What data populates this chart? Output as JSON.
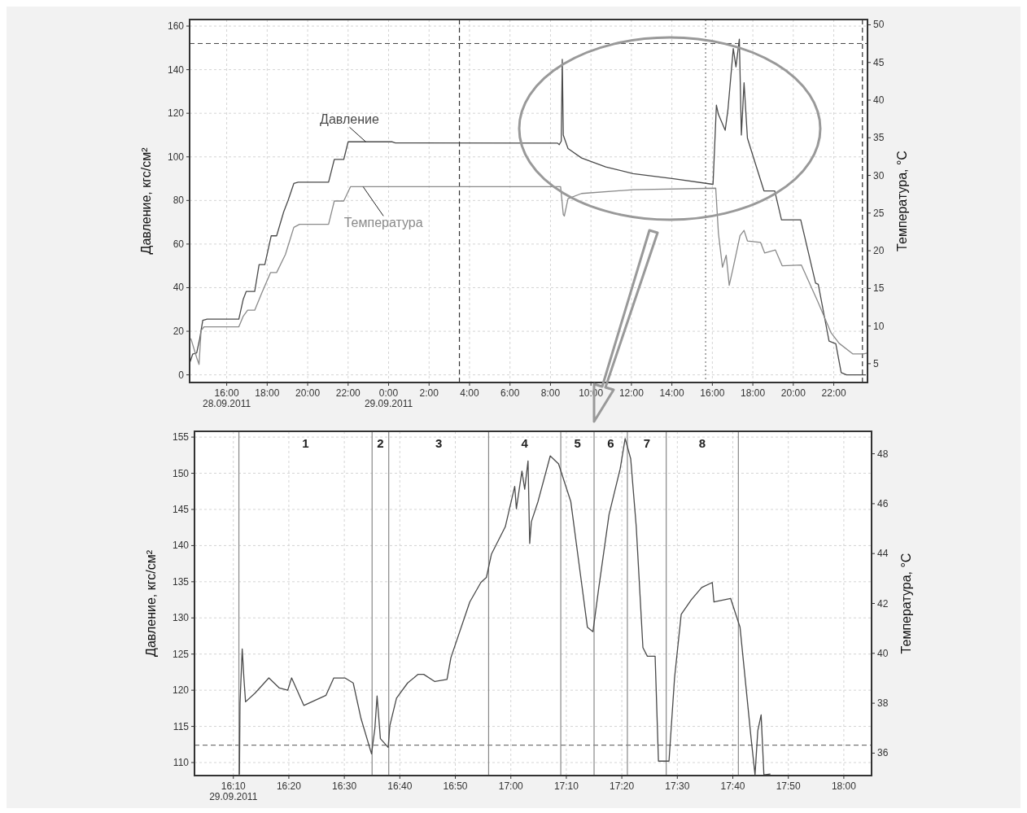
{
  "chart_data": [
    {
      "type": "line",
      "ylabel": "Давление, кгс/см²",
      "y2label": "Температура, °C",
      "xlim": [
        "2011-09-28T14:10",
        "2011-09-29T23:40"
      ],
      "ylim": [
        -3.5,
        163
      ],
      "y2lim": [
        2.5,
        50.7
      ],
      "xticks": [
        {
          "value": "2011-09-28T16:00",
          "label": "16:00\n28.09.2011"
        },
        {
          "value": "2011-09-28T18:00",
          "label": "18:00"
        },
        {
          "value": "2011-09-28T20:00",
          "label": "20:00"
        },
        {
          "value": "2011-09-28T22:00",
          "label": "22:00"
        },
        {
          "value": "2011-09-29T00:00",
          "label": "0:00\n29.09.2011"
        },
        {
          "value": "2011-09-29T02:00",
          "label": "2:00"
        },
        {
          "value": "2011-09-29T04:00",
          "label": "4:00"
        },
        {
          "value": "2011-09-29T06:00",
          "label": "6:00"
        },
        {
          "value": "2011-09-29T08:00",
          "label": "8:00"
        },
        {
          "value": "2011-09-29T10:00",
          "label": "10:00"
        },
        {
          "value": "2011-09-29T12:00",
          "label": "12:00"
        },
        {
          "value": "2011-09-29T14:00",
          "label": "14:00"
        },
        {
          "value": "2011-09-29T16:00",
          "label": "16:00"
        },
        {
          "value": "2011-09-29T18:00",
          "label": "18:00"
        },
        {
          "value": "2011-09-29T20:00",
          "label": "20:00"
        },
        {
          "value": "2011-09-29T22:00",
          "label": "22:00"
        }
      ],
      "yticks": [
        0,
        20,
        40,
        60,
        80,
        100,
        120,
        140,
        160
      ],
      "y2ticks": [
        5,
        10,
        15,
        20,
        25,
        30,
        35,
        40,
        45,
        50
      ],
      "grid": true,
      "ref_lines": [
        {
          "axis": "y",
          "value": 152,
          "line_style": "dashed",
          "color": "#444444"
        },
        {
          "axis": "x",
          "value": "2011-09-29T03:30",
          "line_style": "dashed",
          "color": "#333333"
        },
        {
          "axis": "x",
          "value": "2011-09-29T15:40",
          "line_style": "dotted",
          "color": "#777777"
        },
        {
          "axis": "x",
          "value": "2011-09-29T23:25",
          "line_style": "dashed",
          "color": "#333333"
        }
      ],
      "series": [
        {
          "name": "Давление",
          "color": "#4a4a4a",
          "x": [
            "2011-09-28T14:12",
            "2011-09-28T14:19",
            "2011-09-28T14:31",
            "2011-09-28T14:40",
            "2011-09-28T14:49",
            "2011-09-28T15:02",
            "2011-09-28T16:36",
            "2011-09-28T16:49",
            "2011-09-28T16:58",
            "2011-09-28T17:23",
            "2011-09-28T17:36",
            "2011-09-28T17:53",
            "2011-09-28T18:12",
            "2011-09-28T18:28",
            "2011-09-28T18:49",
            "2011-09-28T19:02",
            "2011-09-28T19:19",
            "2011-09-28T19:32",
            "2011-09-28T21:02",
            "2011-09-28T21:19",
            "2011-09-28T21:47",
            "2011-09-28T22:00",
            "2011-09-29T00:11",
            "2011-09-29T00:20",
            "2011-09-29T08:21",
            "2011-09-29T08:26",
            "2011-09-29T08:32",
            "2011-09-29T08:35",
            "2011-09-29T08:38",
            "2011-09-29T08:52",
            "2011-09-29T09:32",
            "2011-09-29T10:44",
            "2011-09-29T12:05",
            "2011-09-29T14:05",
            "2011-09-29T16:02",
            "2011-09-29T16:12",
            "2011-09-29T16:18",
            "2011-09-29T16:38",
            "2011-09-29T16:46",
            "2011-09-29T17:02",
            "2011-09-29T17:10",
            "2011-09-29T17:20",
            "2011-09-29T17:26",
            "2011-09-29T17:34",
            "2011-09-29T17:44",
            "2011-09-29T17:56",
            "2011-09-29T18:33",
            "2011-09-29T19:05",
            "2011-09-29T19:25",
            "2011-09-29T20:22",
            "2011-09-29T21:06",
            "2011-09-29T21:14",
            "2011-09-29T21:46",
            "2011-09-29T22:06",
            "2011-09-29T22:22",
            "2011-09-29T22:38",
            "2011-09-29T23:34"
          ],
          "values": [
            6.2,
            9.5,
            10.1,
            16.6,
            25,
            25.6,
            25.6,
            34.7,
            38.3,
            38.3,
            50.6,
            50.6,
            63.8,
            63.8,
            74.8,
            80,
            87.8,
            88.4,
            88.4,
            98.8,
            98.8,
            106.9,
            106.9,
            106.4,
            106.3,
            105.6,
            107.2,
            144.7,
            110,
            103.8,
            99.5,
            95.4,
            92.3,
            90,
            87.4,
            123.7,
            119.5,
            112.2,
            121.3,
            149.7,
            141.3,
            154,
            110,
            134,
            108.6,
            102.6,
            84.4,
            84.4,
            71.1,
            71.1,
            42.1,
            41.5,
            15.5,
            14.3,
            1,
            0,
            0
          ]
        },
        {
          "name": "Температура",
          "color": "#8a8a8a",
          "axis": "y2",
          "x": [
            "2011-09-28T14:14",
            "2011-09-28T14:31",
            "2011-09-28T14:38",
            "2011-09-28T14:44",
            "2011-09-28T14:53",
            "2011-09-28T16:36",
            "2011-09-28T16:49",
            "2011-09-28T17:02",
            "2011-09-28T17:23",
            "2011-09-28T17:45",
            "2011-09-28T18:10",
            "2011-09-28T18:28",
            "2011-09-28T18:54",
            "2011-09-28T19:19",
            "2011-09-28T19:36",
            "2011-09-28T21:02",
            "2011-09-28T21:19",
            "2011-09-28T21:47",
            "2011-09-28T22:07",
            "2011-09-29T08:30",
            "2011-09-29T08:38",
            "2011-09-29T08:41",
            "2011-09-29T08:52",
            "2011-09-29T09:32",
            "2011-09-29T12:05",
            "2011-09-29T16:10",
            "2011-09-29T16:18",
            "2011-09-29T16:30",
            "2011-09-29T16:41",
            "2011-09-29T16:50",
            "2011-09-29T17:02",
            "2011-09-29T17:22",
            "2011-09-29T17:34",
            "2011-09-29T17:44",
            "2011-09-29T18:23",
            "2011-09-29T18:35",
            "2011-09-29T19:07",
            "2011-09-29T19:27",
            "2011-09-29T20:24",
            "2011-09-29T21:12",
            "2011-09-29T21:52",
            "2011-09-29T22:16",
            "2011-09-29T22:56",
            "2011-09-29T23:28",
            "2011-09-29T23:39"
          ],
          "values": [
            8.3,
            5.8,
            4.9,
            9.4,
            9.9,
            9.9,
            11.3,
            12.1,
            12.1,
            14.5,
            17.1,
            17.1,
            19.5,
            23.1,
            23.5,
            23.5,
            26.6,
            26.6,
            28.5,
            28.5,
            24.8,
            24.6,
            26.9,
            27.6,
            28.1,
            28.3,
            22.3,
            17.8,
            19.4,
            15.4,
            17.8,
            22,
            22.7,
            21.3,
            21.1,
            19.7,
            20.1,
            18,
            18.1,
            13.3,
            9.1,
            7.7,
            6.3,
            6.3,
            6.4
          ]
        }
      ]
    },
    {
      "type": "line",
      "ylabel": "Давление, кгс/см²",
      "y2label": "Температура, °C",
      "xlim": [
        "2011-09-29T16:03",
        "2011-09-29T18:05"
      ],
      "ylim": [
        108.2,
        155.8
      ],
      "y2lim": [
        35.1,
        48.9
      ],
      "xticks": [
        {
          "value": "2011-09-29T16:10",
          "label": "16:10\n29.09.2011"
        },
        {
          "value": "2011-09-29T16:20",
          "label": "16:20"
        },
        {
          "value": "2011-09-29T16:30",
          "label": "16:30"
        },
        {
          "value": "2011-09-29T16:40",
          "label": "16:40"
        },
        {
          "value": "2011-09-29T16:50",
          "label": "16:50"
        },
        {
          "value": "2011-09-29T17:00",
          "label": "17:00"
        },
        {
          "value": "2011-09-29T17:10",
          "label": "17:10"
        },
        {
          "value": "2011-09-29T17:20",
          "label": "17:20"
        },
        {
          "value": "2011-09-29T17:30",
          "label": "17:30"
        },
        {
          "value": "2011-09-29T17:40",
          "label": "17:40"
        },
        {
          "value": "2011-09-29T17:50",
          "label": "17:50"
        },
        {
          "value": "2011-09-29T18:00",
          "label": "18:00"
        }
      ],
      "yticks": [
        110,
        115,
        120,
        125,
        130,
        135,
        140,
        145,
        150,
        155
      ],
      "y2ticks": [
        36,
        38,
        40,
        42,
        44,
        46,
        48
      ],
      "grid": true,
      "annotations": [
        "1",
        "2",
        "3",
        "4",
        "5",
        "6",
        "7",
        "8"
      ],
      "ref_lines": [
        {
          "axis": "y",
          "value": 112.4,
          "line_style": "dashed",
          "color": "#555555"
        },
        {
          "axis": "x",
          "value": "2011-09-29T16:11",
          "color": "#888888"
        },
        {
          "axis": "x",
          "value": "2011-09-29T16:35",
          "color": "#888888"
        },
        {
          "axis": "x",
          "value": "2011-09-29T16:38",
          "color": "#888888"
        },
        {
          "axis": "x",
          "value": "2011-09-29T16:56",
          "color": "#888888"
        },
        {
          "axis": "x",
          "value": "2011-09-29T17:09",
          "color": "#888888"
        },
        {
          "axis": "x",
          "value": "2011-09-29T17:15",
          "color": "#888888"
        },
        {
          "axis": "x",
          "value": "2011-09-29T17:21",
          "color": "#888888"
        },
        {
          "axis": "x",
          "value": "2011-09-29T17:28",
          "color": "#888888"
        },
        {
          "axis": "x",
          "value": "2011-09-29T17:41",
          "color": "#888888"
        }
      ],
      "series": [
        {
          "color": "#4a4a4a",
          "x": [
            "2011-09-29T16:11:06",
            "2011-09-29T16:11:12",
            "2011-09-29T16:11:36",
            "2011-09-29T16:11:54",
            "2011-09-29T16:12:12",
            "2011-09-29T16:13:54",
            "2011-09-29T16:16:24",
            "2011-09-29T16:18:18",
            "2011-09-29T16:19:48",
            "2011-09-29T16:20:30",
            "2011-09-29T16:22:42",
            "2011-09-29T16:26:42",
            "2011-09-29T16:28:06",
            "2011-09-29T16:30:06",
            "2011-09-29T16:31:36",
            "2011-09-29T16:33:00",
            "2011-09-29T16:34:54",
            "2011-09-29T16:35:30",
            "2011-09-29T16:35:54",
            "2011-09-29T16:36:30",
            "2011-09-29T16:37:54",
            "2011-09-29T16:38:12",
            "2011-09-29T16:39:24",
            "2011-09-29T16:41:24",
            "2011-09-29T16:43:18",
            "2011-09-29T16:44:18",
            "2011-09-29T16:46:18",
            "2011-09-29T16:48:30",
            "2011-09-29T16:49:12",
            "2011-09-29T16:52:36",
            "2011-09-29T16:54:36",
            "2011-09-29T16:55:36",
            "2011-09-29T16:56:30",
            "2011-09-29T16:59:00",
            "2011-09-29T17:00:42",
            "2011-09-29T17:01:00",
            "2011-09-29T17:02:00",
            "2011-09-29T17:02:30",
            "2011-09-29T17:03:06",
            "2011-09-29T17:03:24",
            "2011-09-29T17:03:42",
            "2011-09-29T17:04:54",
            "2011-09-29T17:07:06",
            "2011-09-29T17:08:36",
            "2011-09-29T17:10:48",
            "2011-09-29T17:12:18",
            "2011-09-29T17:13:48",
            "2011-09-29T17:14:48",
            "2011-09-29T17:15:48",
            "2011-09-29T17:17:42",
            "2011-09-29T17:19:42",
            "2011-09-29T17:20:36",
            "2011-09-29T17:21:36",
            "2011-09-29T17:22:36",
            "2011-09-29T17:23:48",
            "2011-09-29T17:24:36",
            "2011-09-29T17:26:00",
            "2011-09-29T17:26:36",
            "2011-09-29T17:28:30",
            "2011-09-29T17:29:30",
            "2011-09-29T17:30:42",
            "2011-09-29T17:32:30",
            "2011-09-29T17:34:24",
            "2011-09-29T17:36:18",
            "2011-09-29T17:36:36",
            "2011-09-29T17:39:36",
            "2011-09-29T17:41:18",
            "2011-09-29T17:43:18",
            "2011-09-29T17:44:00",
            "2011-09-29T17:44:30",
            "2011-09-29T17:45:06",
            "2011-09-29T17:45:36",
            "2011-09-29T17:46:42"
          ],
          "values": [
            108.4,
            118.2,
            125.7,
            121.7,
            118.4,
            119.6,
            121.7,
            120.3,
            120,
            121.7,
            117.9,
            119.3,
            121.7,
            121.7,
            121,
            116.1,
            111.2,
            114.7,
            119.2,
            113.3,
            112.1,
            115.1,
            118.9,
            121,
            122.2,
            122.2,
            121.2,
            121.5,
            124.5,
            132.2,
            134.9,
            135.6,
            138.8,
            142.6,
            148.2,
            145.1,
            150.3,
            147.8,
            151.7,
            140.3,
            143.3,
            146.1,
            152.4,
            151.3,
            146.1,
            137.4,
            128.7,
            128.1,
            133.9,
            144.3,
            150.6,
            154.8,
            152,
            142.6,
            125.9,
            124.7,
            124.7,
            110.2,
            110.2,
            121.7,
            130.5,
            132.5,
            134.2,
            134.9,
            132.2,
            132.7,
            128.7,
            113.3,
            108.3,
            114.4,
            116.6,
            108.3,
            108.4
          ]
        }
      ]
    }
  ]
}
